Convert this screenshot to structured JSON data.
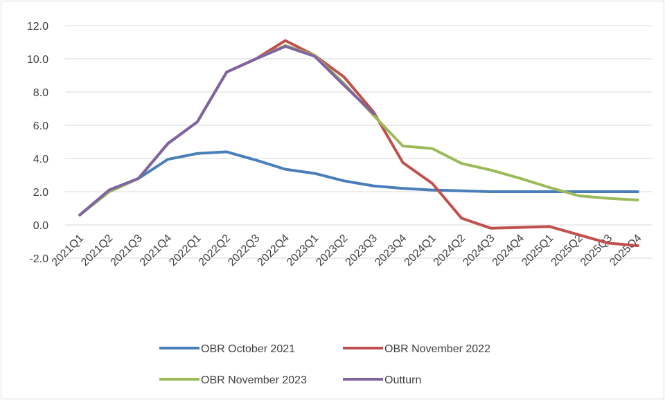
{
  "chart_data": {
    "type": "line",
    "categories": [
      "2021Q1",
      "2021Q2",
      "2021Q3",
      "2021Q4",
      "2022Q1",
      "2022Q2",
      "2022Q3",
      "2022Q4",
      "2023Q1",
      "2023Q2",
      "2023Q3",
      "2023Q4",
      "2024Q1",
      "2024Q2",
      "2024Q3",
      "2024Q4",
      "2025Q1",
      "2025Q2",
      "2025Q3",
      "2025Q4"
    ],
    "series": [
      {
        "name": "OBR October 2021",
        "color": "#4a7ebb",
        "values": [
          0.6,
          2.1,
          2.8,
          3.95,
          4.3,
          4.4,
          3.9,
          3.35,
          3.1,
          2.65,
          2.35,
          2.2,
          2.1,
          2.05,
          2.0,
          2.0,
          2.0,
          2.0,
          2.0,
          2.0
        ]
      },
      {
        "name": "OBR November 2022",
        "color": "#c0504d",
        "values": [
          0.6,
          2.0,
          2.8,
          4.9,
          6.2,
          9.2,
          10.0,
          11.1,
          10.2,
          8.9,
          6.8,
          3.75,
          2.5,
          0.4,
          -0.2,
          -0.15,
          -0.1,
          -0.6,
          -1.1,
          -1.25
        ]
      },
      {
        "name": "OBR November 2023",
        "color": "#9bbb59",
        "values": [
          0.6,
          2.0,
          2.8,
          4.9,
          6.2,
          9.2,
          10.0,
          10.8,
          10.2,
          8.5,
          6.6,
          4.75,
          4.6,
          3.7,
          3.3,
          2.8,
          2.25,
          1.75,
          1.6,
          1.5
        ]
      },
      {
        "name": "Outturn",
        "color": "#8064a2",
        "values": [
          0.6,
          2.1,
          2.8,
          4.9,
          6.2,
          9.2,
          10.0,
          10.75,
          10.15,
          8.4,
          6.7,
          null,
          null,
          null,
          null,
          null,
          null,
          null,
          null,
          null
        ]
      }
    ],
    "ylim": [
      -2,
      12
    ],
    "yticks": [
      {
        "value": -2,
        "label": "-2.0"
      },
      {
        "value": 0,
        "label": "0.0"
      },
      {
        "value": 2,
        "label": "2.0"
      },
      {
        "value": 4,
        "label": "4.0"
      },
      {
        "value": 6,
        "label": "6.0"
      },
      {
        "value": 8,
        "label": "8.0"
      },
      {
        "value": 10,
        "label": "10.0"
      },
      {
        "value": 12,
        "label": "12.0"
      }
    ],
    "grid": true
  }
}
